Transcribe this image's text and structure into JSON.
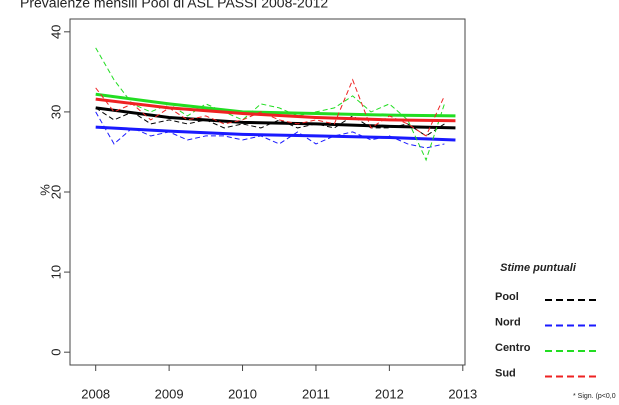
{
  "chart_data": {
    "type": "line",
    "title": "Prevalenze mensili Pool di ASL PASSI 2008-2012",
    "y_label": "%",
    "legend_title": "Stime puntuali",
    "footnote": "* Sign. (p<0,0",
    "x": [
      2008,
      2008.25,
      2008.5,
      2008.75,
      2009,
      2009.25,
      2009.5,
      2009.75,
      2010,
      2010.25,
      2010.5,
      2010.75,
      2011,
      2011.25,
      2011.5,
      2011.75,
      2012,
      2012.25,
      2012.5,
      2012.75
    ],
    "trend_x": [
      2008,
      2009,
      2010,
      2011,
      2012,
      2012.9
    ],
    "series": [
      {
        "name": "Pool",
        "color": "#000000",
        "values": [
          30.5,
          29,
          30,
          28.5,
          29,
          28.5,
          29,
          28,
          28.5,
          28,
          29,
          28,
          28.5,
          28,
          29.5,
          28,
          28,
          28.5,
          27,
          28.5
        ],
        "trend": [
          30.5,
          29.3,
          28.7,
          28.5,
          28.2,
          28.0
        ]
      },
      {
        "name": "Nord",
        "color": "#1a1aff",
        "values": [
          30,
          26,
          28,
          27,
          27.5,
          26.5,
          27,
          27,
          26.5,
          27,
          26,
          27.5,
          26,
          27,
          27.5,
          26.5,
          27,
          26,
          25.5,
          26
        ],
        "trend": [
          28.1,
          27.6,
          27.2,
          27.0,
          26.8,
          26.5
        ]
      },
      {
        "name": "Centro",
        "color": "#22dd22",
        "values": [
          38,
          34,
          31,
          30,
          31,
          29.5,
          31,
          30,
          29,
          31,
          30.5,
          29.5,
          30,
          30.5,
          32,
          30,
          31,
          29,
          24,
          31
        ],
        "trend": [
          32.2,
          31.0,
          30.0,
          29.8,
          29.6,
          29.5
        ]
      },
      {
        "name": "Sud",
        "color": "#ee2222",
        "values": [
          33,
          30,
          31,
          29,
          30.5,
          29,
          29.5,
          28.5,
          29,
          30,
          29,
          28.5,
          29,
          28.5,
          34,
          28,
          29.5,
          28.5,
          27,
          32
        ],
        "trend": [
          31.6,
          30.5,
          29.8,
          29.3,
          29.0,
          28.9
        ]
      }
    ],
    "xlim": [
      2007.65,
      2013.03
    ],
    "xticks": [
      2008,
      2009,
      2010,
      2011,
      2012,
      2013
    ],
    "ylim": [
      -1.6,
      41.6
    ],
    "yticks": [
      0,
      10,
      20,
      30,
      40
    ]
  }
}
